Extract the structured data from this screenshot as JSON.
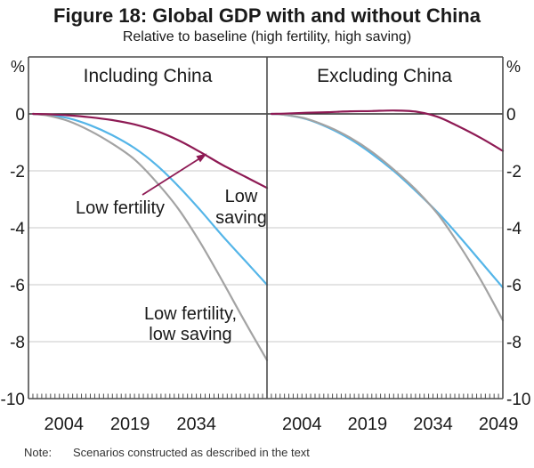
{
  "header": {
    "title": "Figure 18: Global GDP with and without China",
    "subtitle": "Relative to baseline (high fertility, high saving)"
  },
  "note": {
    "label": "Note:",
    "text": "Scenarios constructed as described in the text"
  },
  "chart_data": {
    "type": "line",
    "title": "Figure 18: Global GDP with and without China",
    "subtitle": "Relative to baseline (high fertility, high saving)",
    "unit": "%",
    "ylim": [
      -10,
      2
    ],
    "yticks": [
      0,
      -2,
      -4,
      -6,
      -8,
      -10
    ],
    "x_domain": [
      1996,
      2050
    ],
    "x_years": [
      1997,
      2000,
      2005,
      2010,
      2015,
      2020,
      2025,
      2030,
      2035,
      2040,
      2045,
      2050
    ],
    "grid": "horizontal-only",
    "legend_position": "in-plot-labels",
    "colors": {
      "low_fertility": "#8E1A54",
      "low_saving": "#54B5E8",
      "low_fertility_low_saving": "#A3A3A3",
      "grid": "#C9C9C9",
      "frame": "#4D4D4D",
      "zero_line": "#2E2E2E",
      "text": "#1A1A1A"
    },
    "panels": [
      {
        "title": "Including China",
        "xticks": [
          2004,
          2019,
          2034
        ],
        "series": [
          {
            "name": "Low fertility",
            "color": "low_fertility",
            "values": [
              0,
              -0.01,
              -0.05,
              -0.12,
              -0.22,
              -0.37,
              -0.6,
              -0.93,
              -1.35,
              -1.8,
              -2.2,
              -2.6
            ]
          },
          {
            "name": "Low saving",
            "color": "low_saving",
            "values": [
              0,
              -0.03,
              -0.15,
              -0.4,
              -0.75,
              -1.2,
              -1.8,
              -2.55,
              -3.4,
              -4.3,
              -5.15,
              -6.0
            ]
          },
          {
            "name": "Low fertility, low saving",
            "color": "low_fertility_low_saving",
            "values": [
              0,
              -0.05,
              -0.25,
              -0.6,
              -1.05,
              -1.6,
              -2.4,
              -3.35,
              -4.55,
              -5.9,
              -7.3,
              -8.65
            ]
          }
        ]
      },
      {
        "title": "Excluding China",
        "xticks": [
          2004,
          2019,
          2034,
          2049
        ],
        "series": [
          {
            "name": "Low fertility",
            "color": "low_fertility",
            "values": [
              0,
              0.01,
              0.04,
              0.06,
              0.09,
              0.1,
              0.12,
              0.08,
              -0.1,
              -0.45,
              -0.85,
              -1.3
            ]
          },
          {
            "name": "Low saving",
            "color": "low_saving",
            "values": [
              0,
              -0.03,
              -0.18,
              -0.48,
              -0.88,
              -1.4,
              -2.0,
              -2.7,
              -3.45,
              -4.3,
              -5.2,
              -6.1
            ]
          },
          {
            "name": "Low fertility, low saving",
            "color": "low_fertility_low_saving",
            "values": [
              0,
              -0.03,
              -0.17,
              -0.45,
              -0.83,
              -1.33,
              -1.95,
              -2.65,
              -3.5,
              -4.6,
              -5.85,
              -7.25
            ]
          }
        ]
      }
    ],
    "labels": {
      "low_fertility": "Low fertility",
      "low_saving_line1": "Low",
      "low_saving_line2": "saving",
      "low_fert_low_sav_line1": "Low fertility,",
      "low_fert_low_sav_line2": "low saving"
    }
  }
}
